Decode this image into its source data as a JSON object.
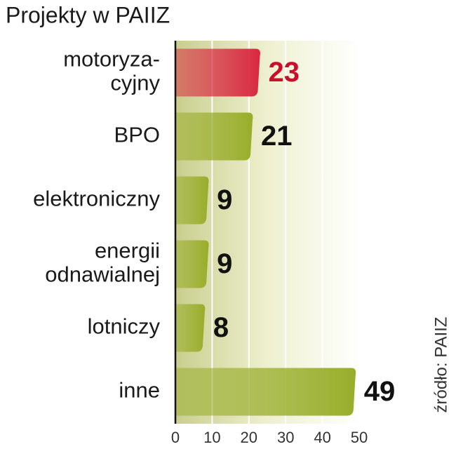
{
  "chart_data": {
    "type": "bar",
    "orientation": "horizontal",
    "title": "Projekty w PAIIZ",
    "source": "źródło: PAIIZ",
    "categories": [
      [
        "motoryza-",
        "cyjny"
      ],
      [
        "BPO"
      ],
      [
        "elektroniczny"
      ],
      [
        "energii",
        "odnawialnej"
      ],
      [
        "lotniczy"
      ],
      [
        "inne"
      ]
    ],
    "values": [
      23,
      21,
      9,
      9,
      8,
      49
    ],
    "colors": [
      "#d8283f",
      "#98ad2a",
      "#98ad2a",
      "#98ad2a",
      "#98ad2a",
      "#98ad2a"
    ],
    "value_label_colors": [
      "#c8102e",
      "#111111",
      "#111111",
      "#111111",
      "#111111",
      "#111111"
    ],
    "xlim": [
      0,
      50
    ],
    "xticks": [
      0,
      10,
      20,
      30,
      40,
      50
    ],
    "grid": true
  }
}
